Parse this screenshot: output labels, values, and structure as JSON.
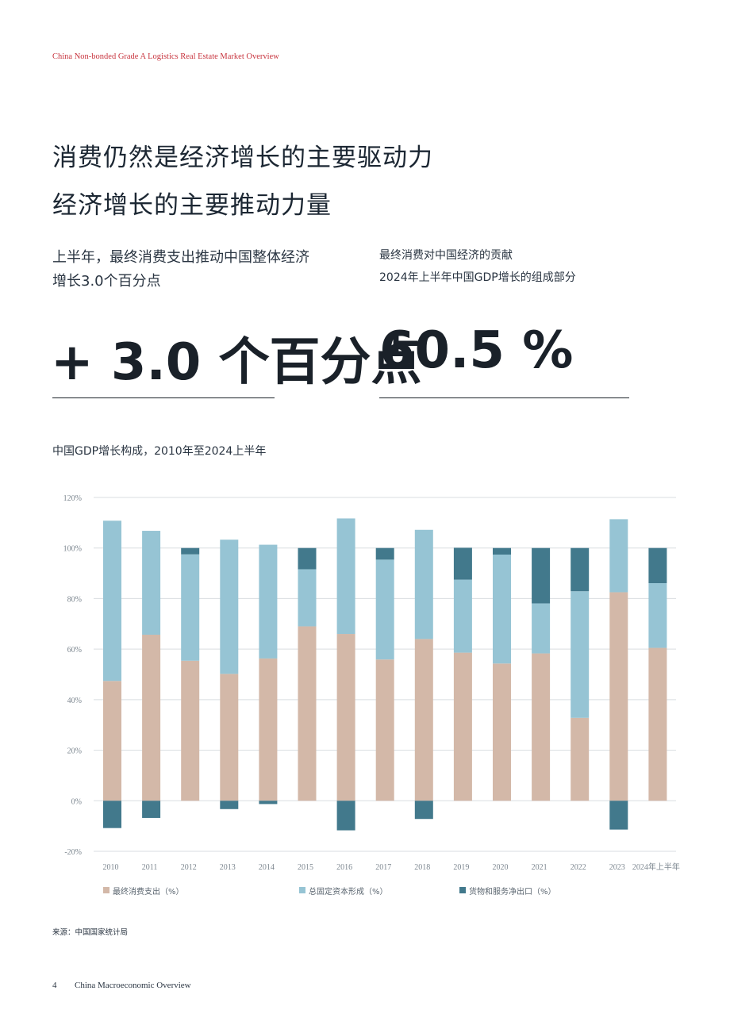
{
  "header": {
    "report_title": "China Non-bonded Grade A Logistics Real Estate Market Overview"
  },
  "headline": {
    "line1": "消费仍然是经济增长的主要驱动力",
    "line2": "经济增长的主要推动力量"
  },
  "stat_left": {
    "caption": "上半年，最终消费支出推动中国整体经济增长3.0个百分点",
    "value": "+ 3.0 个百分点"
  },
  "stat_right": {
    "caption_line1": "最终消费对中国经济的贡献",
    "caption_line2": "2024年上半年中国GDP增长的组成部分",
    "value": "60.5 %"
  },
  "chart_title": "中国GDP增长构成，2010年至2024上半年",
  "chart_data": {
    "type": "bar",
    "stacked": true,
    "categories": [
      "2010",
      "2011",
      "2012",
      "2013",
      "2014",
      "2015",
      "2016",
      "2017",
      "2018",
      "2019",
      "2020",
      "2021",
      "2022",
      "2023",
      "2024年上半年"
    ],
    "series": [
      {
        "name": "最终消费支出（%）",
        "color": "#d3b8a8",
        "values": [
          47.4,
          65.7,
          55.4,
          50.2,
          56.3,
          69.0,
          66.0,
          55.9,
          64.0,
          58.6,
          54.3,
          58.3,
          32.8,
          82.5,
          60.5
        ]
      },
      {
        "name": "总固定资本形成（%）",
        "color": "#96c4d4",
        "values": [
          63.4,
          41.1,
          42.1,
          53.1,
          45.0,
          22.6,
          45.7,
          39.5,
          43.2,
          28.9,
          43.1,
          19.8,
          50.1,
          28.9,
          25.6
        ]
      },
      {
        "name": "货物和服务净出口（%）",
        "color": "#42798c",
        "values": [
          -10.8,
          -6.8,
          2.5,
          -3.3,
          -1.3,
          8.4,
          -11.7,
          4.6,
          -7.2,
          12.6,
          2.6,
          21.9,
          17.1,
          -11.4,
          13.9
        ]
      }
    ],
    "yticks": [
      "-20%",
      "0%",
      "20%",
      "40%",
      "60%",
      "80%",
      "100%",
      "120%"
    ],
    "ylim": [
      -20,
      120
    ],
    "grid": true,
    "legend_position": "bottom"
  },
  "source": "来源：中国国家统计局",
  "footer": {
    "page_number": "4",
    "section": "China Macroeconomic Overview"
  }
}
